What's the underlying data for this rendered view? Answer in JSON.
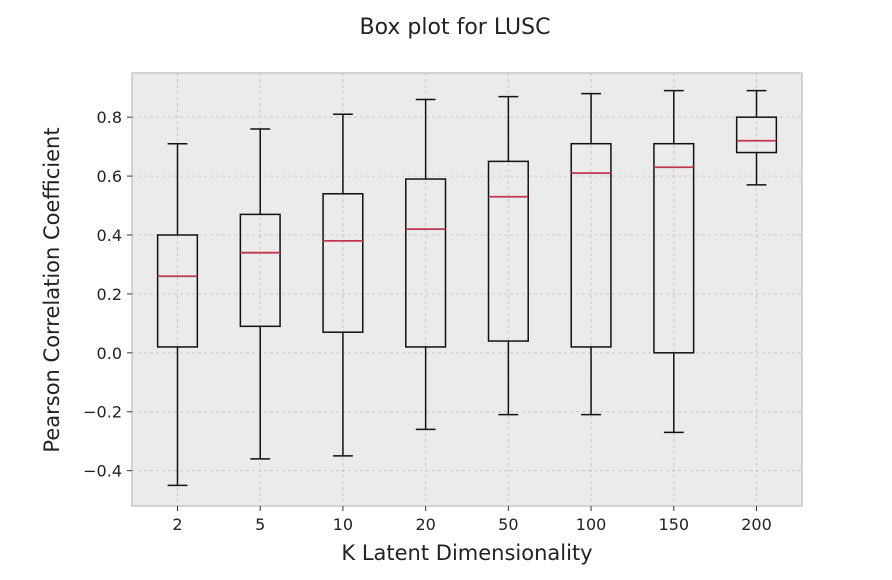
{
  "chart_data": {
    "type": "box",
    "title": "Box plot for LUSC",
    "xlabel": "K Latent Dimensionality",
    "ylabel": "Pearson Correlation Coefficient",
    "ylim": [
      -0.52,
      0.95
    ],
    "yticks": [
      -0.4,
      -0.2,
      0.0,
      0.2,
      0.4,
      0.6,
      0.8
    ],
    "ytick_labels": [
      "−0.4",
      "−0.2",
      "0.0",
      "0.2",
      "0.4",
      "0.6",
      "0.8"
    ],
    "grid": true,
    "categories": [
      "2",
      "5",
      "10",
      "20",
      "50",
      "100",
      "150",
      "200"
    ],
    "boxes": [
      {
        "category": "2",
        "whisker_low": -0.45,
        "q1": 0.02,
        "median": 0.26,
        "q3": 0.4,
        "whisker_high": 0.71
      },
      {
        "category": "5",
        "whisker_low": -0.36,
        "q1": 0.09,
        "median": 0.34,
        "q3": 0.47,
        "whisker_high": 0.76
      },
      {
        "category": "10",
        "whisker_low": -0.35,
        "q1": 0.07,
        "median": 0.38,
        "q3": 0.54,
        "whisker_high": 0.81
      },
      {
        "category": "20",
        "whisker_low": -0.26,
        "q1": 0.02,
        "median": 0.42,
        "q3": 0.59,
        "whisker_high": 0.86
      },
      {
        "category": "50",
        "whisker_low": -0.21,
        "q1": 0.04,
        "median": 0.53,
        "q3": 0.65,
        "whisker_high": 0.87
      },
      {
        "category": "100",
        "whisker_low": -0.21,
        "q1": 0.02,
        "median": 0.61,
        "q3": 0.71,
        "whisker_high": 0.88
      },
      {
        "category": "150",
        "whisker_low": -0.27,
        "q1": 0.0,
        "median": 0.63,
        "q3": 0.71,
        "whisker_high": 0.89
      },
      {
        "category": "200",
        "whisker_low": 0.57,
        "q1": 0.68,
        "median": 0.72,
        "q3": 0.8,
        "whisker_high": 0.89
      }
    ],
    "colors": {
      "background": "#ebebeb",
      "grid": "#c8c8c8",
      "box_edge": "#111111",
      "median": "#c0394b",
      "frame": "#bcbcbc"
    }
  }
}
